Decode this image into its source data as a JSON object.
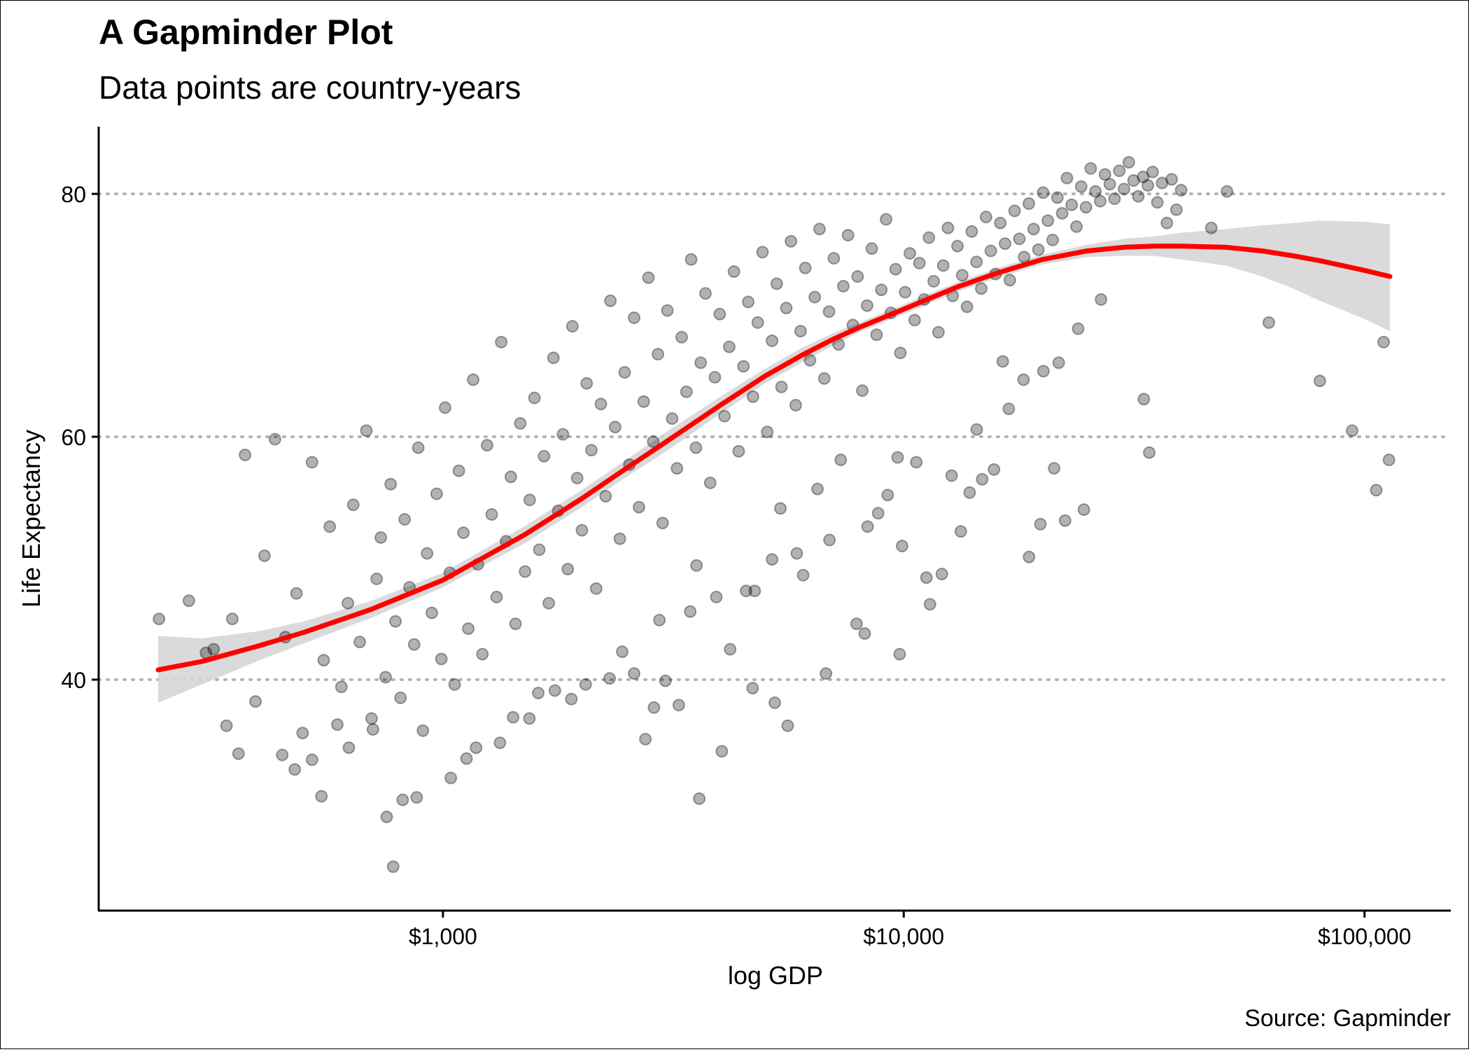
{
  "chart_data": {
    "type": "scatter",
    "title": "A Gapminder Plot",
    "subtitle": "Data points are country-years",
    "caption": "Source: Gapminder",
    "xlabel": "log GDP",
    "ylabel": "Life Expectancy",
    "x_scale": "log10",
    "xlim": [
      241,
      113523
    ],
    "ylim": [
      23.6,
      82.6
    ],
    "x_ticks": [
      1000,
      10000,
      100000
    ],
    "x_tick_labels": [
      "$1,000",
      "$10,000",
      "$100,000"
    ],
    "y_ticks": [
      40,
      60,
      80
    ],
    "y_tick_labels": [
      "40",
      "60",
      "80"
    ],
    "grid": "horizontal dotted",
    "colors": {
      "points": "#000000",
      "smooth_line": "#ff0000",
      "confidence_band": "#d3d3d3",
      "grid": "#b3b3b3"
    },
    "series": [
      {
        "kind": "points",
        "points": [
          [
            242,
            45
          ],
          [
            281,
            46.5
          ],
          [
            306,
            42.2
          ],
          [
            318,
            42.5
          ],
          [
            339,
            36.2
          ],
          [
            349,
            45
          ],
          [
            360,
            33.9
          ],
          [
            372,
            58.5
          ],
          [
            392,
            38.2
          ],
          [
            410,
            50.2
          ],
          [
            432,
            59.8
          ],
          [
            455,
            43.5
          ],
          [
            481,
            47.1
          ],
          [
            496,
            35.6
          ],
          [
            520,
            57.9
          ],
          [
            551,
            41.6
          ],
          [
            568,
            52.6
          ],
          [
            602,
            39.4
          ],
          [
            622,
            46.3
          ],
          [
            639,
            54.4
          ],
          [
            660,
            43.1
          ],
          [
            682,
            60.5
          ],
          [
            700,
            36.8
          ],
          [
            718,
            48.3
          ],
          [
            733,
            51.7
          ],
          [
            751,
            40.2
          ],
          [
            770,
            56.1
          ],
          [
            789,
            44.8
          ],
          [
            809,
            38.5
          ],
          [
            826,
            53.2
          ],
          [
            846,
            47.6
          ],
          [
            866,
            42.9
          ],
          [
            884,
            59.1
          ],
          [
            905,
            35.8
          ],
          [
            924,
            50.4
          ],
          [
            946,
            45.5
          ],
          [
            969,
            55.3
          ],
          [
            992,
            41.7
          ],
          [
            1011,
            62.4
          ],
          [
            1035,
            48.8
          ],
          [
            1060,
            39.6
          ],
          [
            1083,
            57.2
          ],
          [
            1108,
            52.1
          ],
          [
            1135,
            44.2
          ],
          [
            1163,
            64.7
          ],
          [
            1191,
            49.5
          ],
          [
            1218,
            42.1
          ],
          [
            1247,
            59.3
          ],
          [
            1276,
            53.6
          ],
          [
            1307,
            46.8
          ],
          [
            1338,
            67.8
          ],
          [
            1371,
            51.4
          ],
          [
            1404,
            56.7
          ],
          [
            1437,
            44.6
          ],
          [
            1472,
            61.1
          ],
          [
            1507,
            48.9
          ],
          [
            1543,
            54.8
          ],
          [
            1580,
            63.2
          ],
          [
            1618,
            50.7
          ],
          [
            1657,
            58.4
          ],
          [
            1697,
            46.3
          ],
          [
            1737,
            66.5
          ],
          [
            1779,
            53.9
          ],
          [
            1821,
            60.2
          ],
          [
            1866,
            49.1
          ],
          [
            1910,
            69.1
          ],
          [
            1956,
            56.6
          ],
          [
            2003,
            52.3
          ],
          [
            2051,
            64.4
          ],
          [
            2100,
            58.9
          ],
          [
            2151,
            47.5
          ],
          [
            2202,
            62.7
          ],
          [
            2255,
            55.1
          ],
          [
            2309,
            71.2
          ],
          [
            2365,
            60.8
          ],
          [
            2421,
            51.6
          ],
          [
            2480,
            65.3
          ],
          [
            2539,
            57.7
          ],
          [
            2600,
            69.8
          ],
          [
            2663,
            54.2
          ],
          [
            2727,
            62.9
          ],
          [
            2792,
            73.1
          ],
          [
            2859,
            59.6
          ],
          [
            2928,
            66.8
          ],
          [
            2998,
            52.9
          ],
          [
            3070,
            70.4
          ],
          [
            3144,
            61.5
          ],
          [
            3220,
            57.4
          ],
          [
            3297,
            68.2
          ],
          [
            3376,
            63.7
          ],
          [
            3457,
            74.6
          ],
          [
            3540,
            59.1
          ],
          [
            3625,
            66.1
          ],
          [
            3713,
            71.8
          ],
          [
            3802,
            56.2
          ],
          [
            3893,
            64.9
          ],
          [
            3987,
            70.1
          ],
          [
            4083,
            61.7
          ],
          [
            4181,
            67.4
          ],
          [
            4281,
            73.6
          ],
          [
            4384,
            58.8
          ],
          [
            4490,
            65.8
          ],
          [
            4597,
            71.1
          ],
          [
            4708,
            63.3
          ],
          [
            4821,
            69.4
          ],
          [
            4937,
            75.2
          ],
          [
            5056,
            60.4
          ],
          [
            5177,
            67.9
          ],
          [
            5302,
            72.6
          ],
          [
            5429,
            64.1
          ],
          [
            5560,
            70.6
          ],
          [
            5693,
            76.1
          ],
          [
            5830,
            62.6
          ],
          [
            5971,
            68.7
          ],
          [
            6114,
            73.9
          ],
          [
            6261,
            66.3
          ],
          [
            6411,
            71.5
          ],
          [
            6566,
            77.1
          ],
          [
            6723,
            64.8
          ],
          [
            6885,
            70.3
          ],
          [
            7051,
            74.7
          ],
          [
            7220,
            67.6
          ],
          [
            7394,
            72.4
          ],
          [
            7571,
            76.6
          ],
          [
            7754,
            69.2
          ],
          [
            7940,
            73.2
          ],
          [
            8131,
            63.8
          ],
          [
            8327,
            70.8
          ],
          [
            8527,
            75.5
          ],
          [
            8732,
            68.4
          ],
          [
            8942,
            72.1
          ],
          [
            9157,
            77.9
          ],
          [
            9377,
            70.2
          ],
          [
            9603,
            73.8
          ],
          [
            9834,
            66.9
          ],
          [
            10070,
            71.9
          ],
          [
            10312,
            75.1
          ],
          [
            10561,
            69.6
          ],
          [
            10815,
            74.3
          ],
          [
            11075,
            71.3
          ],
          [
            11341,
            76.4
          ],
          [
            11614,
            72.8
          ],
          [
            11894,
            68.6
          ],
          [
            12180,
            74.1
          ],
          [
            12473,
            77.2
          ],
          [
            12773,
            71.6
          ],
          [
            13080,
            75.7
          ],
          [
            13395,
            73.3
          ],
          [
            13718,
            70.7
          ],
          [
            14048,
            76.9
          ],
          [
            14386,
            74.4
          ],
          [
            14732,
            72.2
          ],
          [
            15086,
            78.1
          ],
          [
            15449,
            75.3
          ],
          [
            15821,
            73.4
          ],
          [
            16202,
            77.6
          ],
          [
            16591,
            75.9
          ],
          [
            16991,
            72.9
          ],
          [
            17399,
            78.6
          ],
          [
            17818,
            76.3
          ],
          [
            18247,
            74.8
          ],
          [
            18686,
            79.2
          ],
          [
            19135,
            77.1
          ],
          [
            19596,
            75.4
          ],
          [
            20067,
            80.1
          ],
          [
            20550,
            77.8
          ],
          [
            21045,
            76.2
          ],
          [
            21551,
            79.7
          ],
          [
            22070,
            78.4
          ],
          [
            22601,
            81.3
          ],
          [
            23144,
            79.1
          ],
          [
            23701,
            77.3
          ],
          [
            24272,
            80.6
          ],
          [
            24856,
            78.9
          ],
          [
            25454,
            82.1
          ],
          [
            26066,
            80.2
          ],
          [
            26694,
            79.4
          ],
          [
            27336,
            81.6
          ],
          [
            27994,
            80.8
          ],
          [
            28667,
            79.6
          ],
          [
            29357,
            81.9
          ],
          [
            30063,
            80.4
          ],
          [
            30787,
            82.6
          ],
          [
            31528,
            81.1
          ],
          [
            32287,
            79.8
          ],
          [
            33064,
            81.4
          ],
          [
            33859,
            80.7
          ],
          [
            34674,
            81.8
          ],
          [
            35509,
            79.3
          ],
          [
            36363,
            80.9
          ],
          [
            37238,
            77.6
          ],
          [
            38134,
            81.2
          ],
          [
            39052,
            78.7
          ],
          [
            39991,
            80.3
          ],
          [
            46500,
            77.2
          ],
          [
            50300,
            80.2
          ],
          [
            62000,
            69.4
          ],
          [
            80000,
            64.6
          ],
          [
            94000,
            60.5
          ],
          [
            106000,
            55.6
          ],
          [
            110000,
            67.8
          ],
          [
            113000,
            58.1
          ],
          [
            1900,
            38.4
          ],
          [
            2450,
            42.3
          ],
          [
            2950,
            44.9
          ],
          [
            3550,
            49.4
          ],
          [
            4200,
            42.5
          ],
          [
            4750,
            47.3
          ],
          [
            5400,
            54.1
          ],
          [
            6050,
            48.6
          ],
          [
            6900,
            51.5
          ],
          [
            7900,
            44.6
          ],
          [
            8800,
            53.7
          ],
          [
            9700,
            58.3
          ],
          [
            11200,
            48.4
          ],
          [
            12700,
            56.8
          ],
          [
            14400,
            60.6
          ],
          [
            16400,
            66.2
          ],
          [
            18700,
            50.1
          ],
          [
            21200,
            57.4
          ],
          [
            23900,
            68.9
          ],
          [
            26800,
            71.3
          ],
          [
            33200,
            63.1
          ],
          [
            34100,
            58.7
          ],
          [
            1180,
            34.4
          ],
          [
            1540,
            36.8
          ],
          [
            1750,
            39.1
          ],
          [
            2600,
            40.5
          ],
          [
            3250,
            37.9
          ],
          [
            3600,
            30.2
          ],
          [
            4030,
            34.1
          ],
          [
            4700,
            39.3
          ],
          [
            5250,
            38.1
          ],
          [
            5600,
            36.2
          ],
          [
            6780,
            40.5
          ],
          [
            8230,
            43.8
          ],
          [
            9800,
            42.1
          ],
          [
            11400,
            46.2
          ],
          [
            13900,
            55.4
          ],
          [
            15700,
            57.3
          ],
          [
            19800,
            52.8
          ],
          [
            22400,
            53.1
          ],
          [
            24600,
            54.0
          ],
          [
            780,
            24.6
          ],
          [
            818,
            30.1
          ],
          [
            877,
            30.3
          ],
          [
            755,
            28.7
          ],
          [
            545,
            30.4
          ],
          [
            477,
            32.6
          ],
          [
            520,
            33.4
          ],
          [
            448,
            33.8
          ],
          [
            590,
            36.3
          ],
          [
            625,
            34.4
          ],
          [
            705,
            35.9
          ],
          [
            1040,
            31.9
          ],
          [
            1125,
            33.5
          ],
          [
            1330,
            34.8
          ],
          [
            1420,
            36.9
          ],
          [
            1610,
            38.9
          ],
          [
            2040,
            39.6
          ],
          [
            2300,
            40.1
          ],
          [
            2750,
            35.1
          ],
          [
            2870,
            37.7
          ],
          [
            3040,
            39.9
          ],
          [
            3440,
            45.6
          ],
          [
            3920,
            46.8
          ],
          [
            4550,
            47.3
          ],
          [
            5180,
            49.9
          ],
          [
            5860,
            50.4
          ],
          [
            6500,
            55.7
          ],
          [
            7300,
            58.1
          ],
          [
            8350,
            52.6
          ],
          [
            9230,
            55.2
          ],
          [
            9920,
            51.0
          ],
          [
            10650,
            57.9
          ],
          [
            12100,
            48.7
          ],
          [
            13300,
            52.2
          ],
          [
            14800,
            56.5
          ],
          [
            16900,
            62.3
          ],
          [
            18200,
            64.7
          ],
          [
            20100,
            65.4
          ],
          [
            21700,
            66.1
          ]
        ]
      },
      {
        "kind": "smooth",
        "method": "loess",
        "x": [
          241,
          300,
          400,
          500,
          700,
          1000,
          1500,
          2000,
          2500,
          3000,
          4000,
          5000,
          6000,
          7000,
          8000,
          10000,
          13000,
          16000,
          20000,
          25000,
          30000,
          35000,
          40000,
          50000,
          60000,
          70000,
          80000,
          100000,
          113523
        ],
        "y": [
          40.8,
          41.5,
          42.8,
          43.9,
          45.8,
          48.2,
          51.9,
          54.9,
          57.4,
          59.4,
          62.6,
          65.0,
          66.7,
          68.0,
          69.0,
          70.5,
          72.3,
          73.5,
          74.6,
          75.3,
          75.6,
          75.7,
          75.7,
          75.6,
          75.3,
          74.9,
          74.5,
          73.7,
          73.2
        ],
        "ci_low": [
          38.1,
          39.6,
          41.6,
          43.0,
          45.1,
          47.6,
          51.2,
          54.2,
          56.7,
          58.6,
          61.9,
          64.4,
          66.1,
          67.5,
          68.6,
          70.1,
          71.9,
          73.1,
          74.2,
          74.8,
          74.9,
          74.9,
          74.6,
          74.1,
          73.2,
          72.2,
          71.2,
          69.7,
          68.7
        ],
        "ci_high": [
          43.6,
          43.4,
          44.0,
          44.8,
          46.5,
          48.8,
          52.6,
          55.6,
          58.1,
          60.2,
          63.3,
          65.6,
          67.3,
          68.5,
          69.4,
          70.9,
          72.7,
          73.9,
          75.0,
          75.8,
          76.3,
          76.5,
          76.8,
          77.1,
          77.4,
          77.6,
          77.8,
          77.7,
          77.5
        ]
      }
    ]
  }
}
